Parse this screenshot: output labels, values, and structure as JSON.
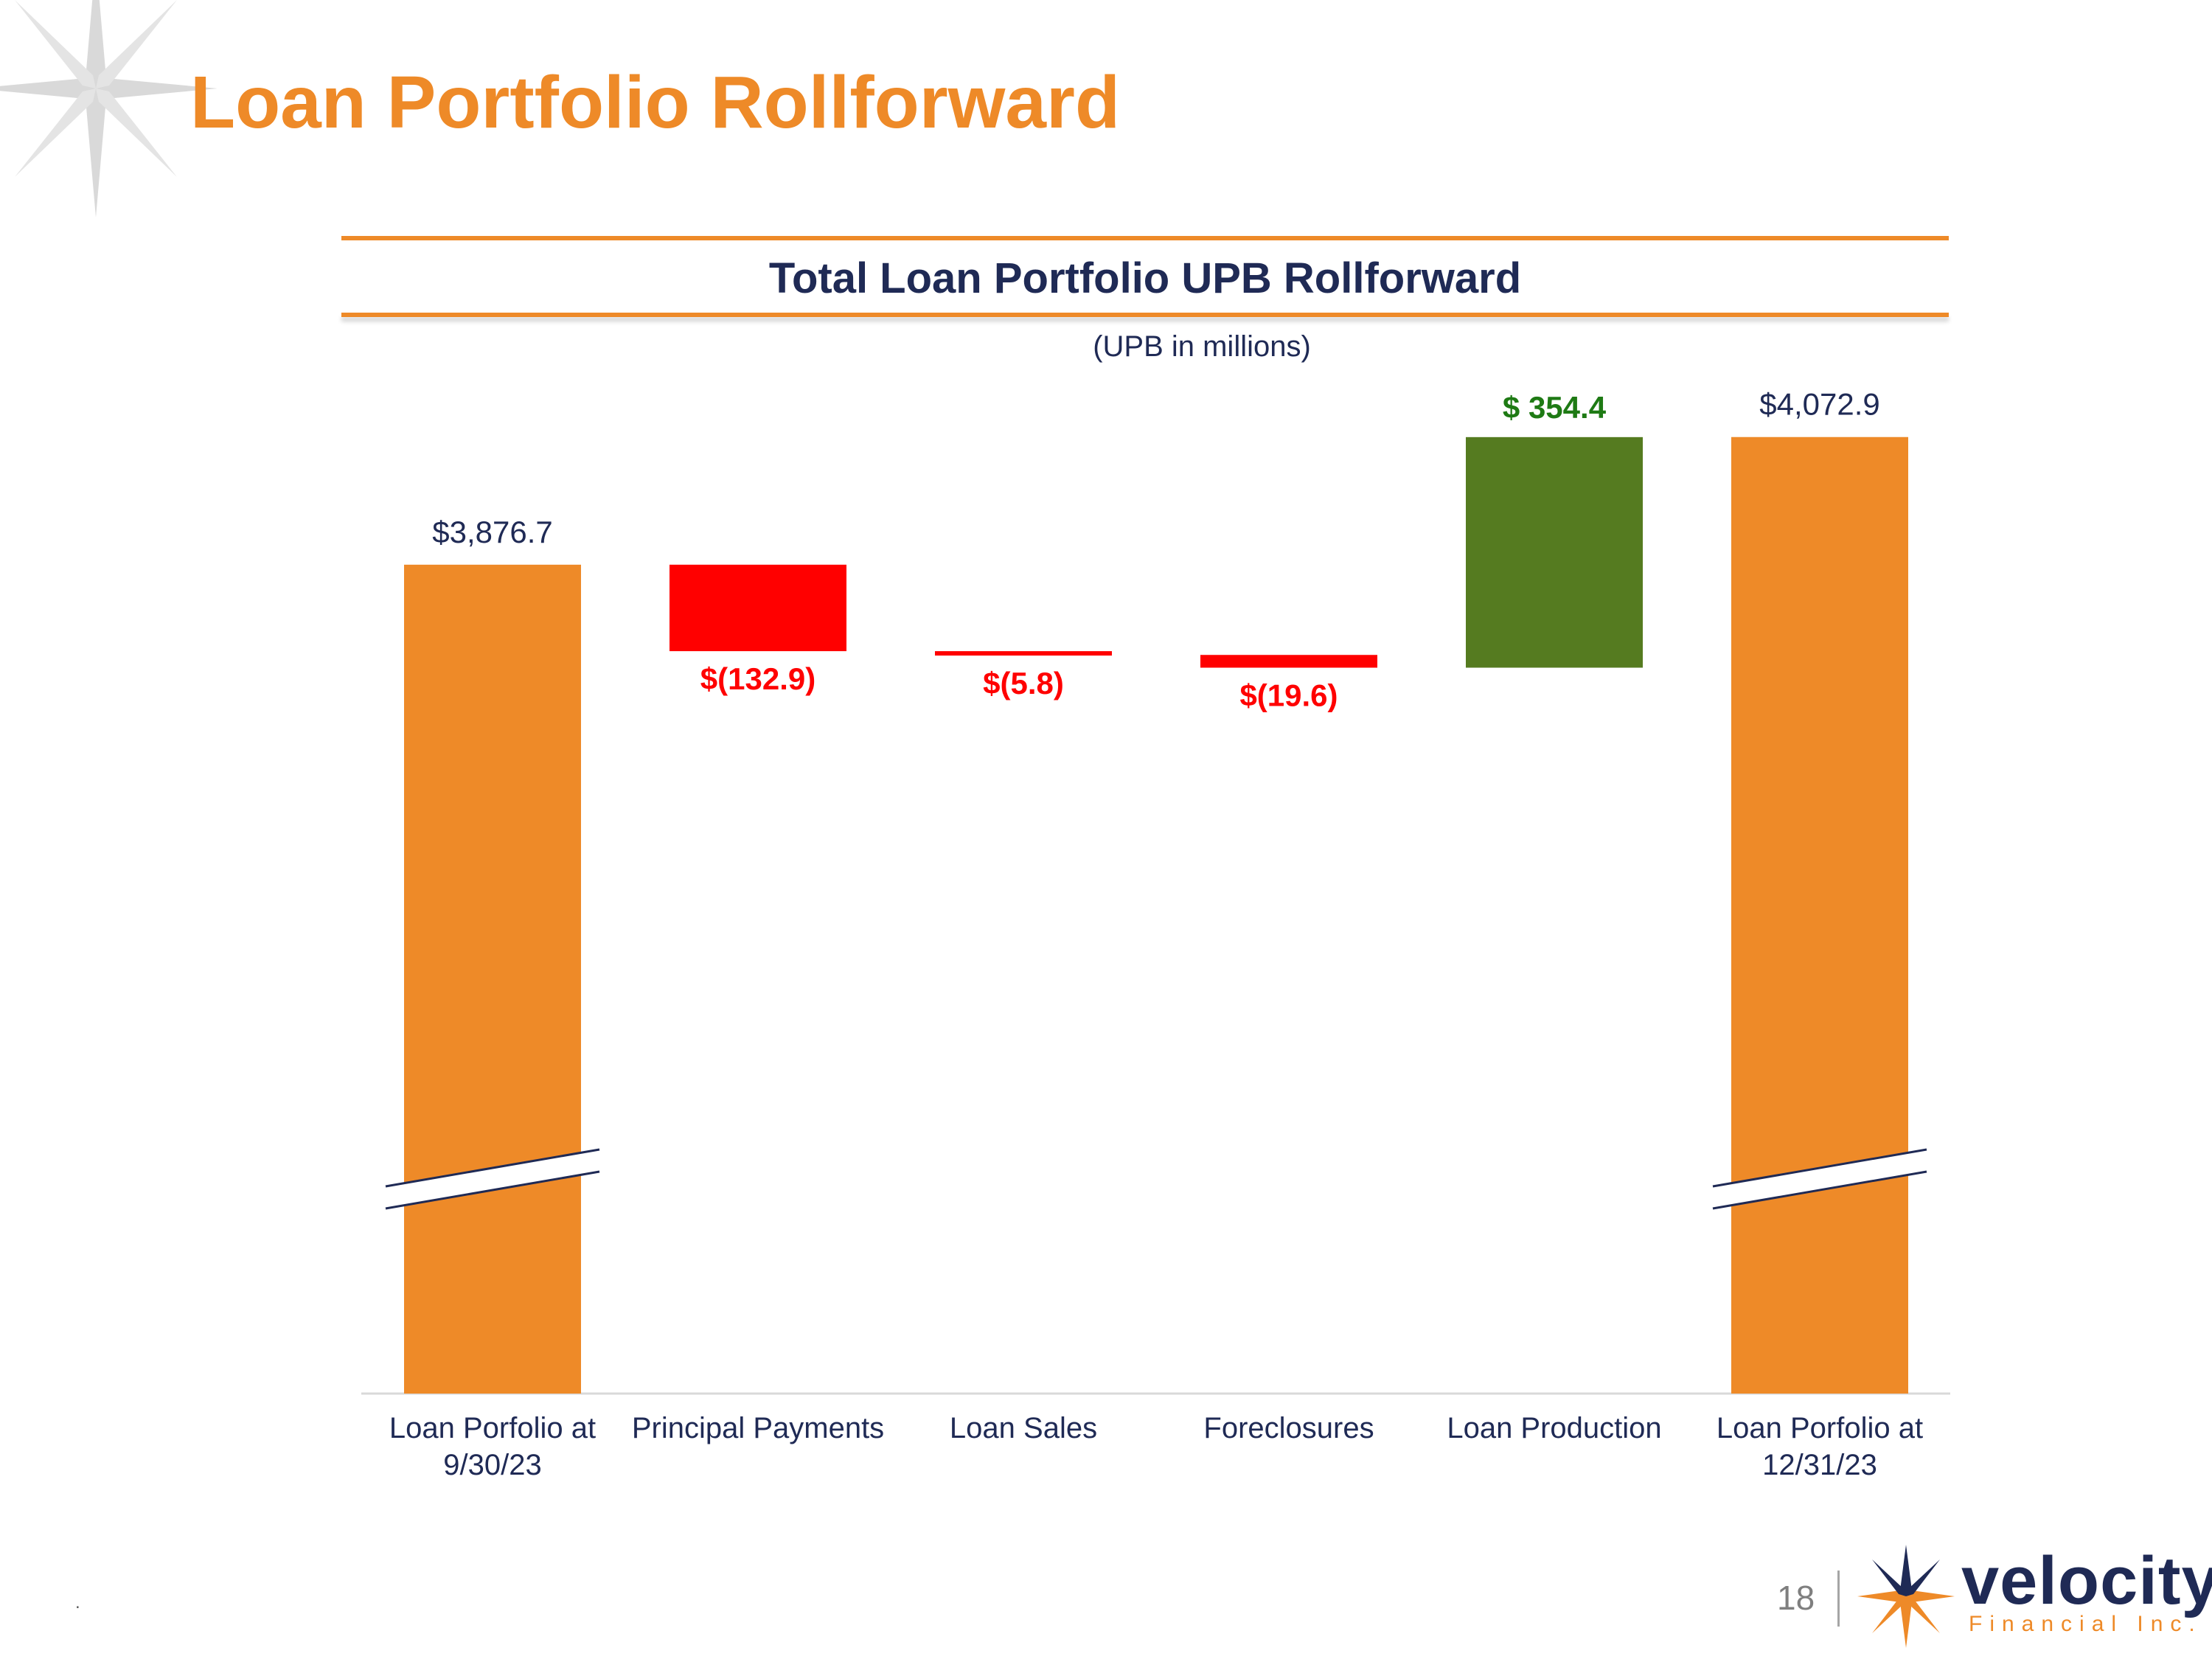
{
  "slide": {
    "title": "Loan Portfolio Rollforward",
    "page_number": "18",
    "footer_mark": "."
  },
  "logo": {
    "wordmark": "velocity",
    "subtitle": "Financial Inc."
  },
  "colors": {
    "accent": "#EE8A28",
    "navy": "#1F2A55",
    "negative": "#FF0000",
    "positive": "#557B20",
    "positive_label": "#1E7A14"
  },
  "chart_data": {
    "type": "bar",
    "subtype": "waterfall",
    "title": "Total Loan Portfolio UPB Rollforward",
    "subtitle": "(UPB in millions)",
    "categories": [
      [
        "Loan Porfolio at",
        "9/30/23"
      ],
      [
        "Principal Payments"
      ],
      [
        "Loan Sales"
      ],
      [
        "Foreclosures"
      ],
      [
        "Loan Production"
      ],
      [
        "Loan Porfolio at",
        "12/31/23"
      ]
    ],
    "values": [
      3876.7,
      -132.9,
      -5.8,
      -19.6,
      354.4,
      4072.9
    ],
    "kinds": [
      "total",
      "delta",
      "delta",
      "delta",
      "delta",
      "total"
    ],
    "labels": [
      "$3,876.7",
      "$(132.9)",
      "$(5.8)",
      "$(19.6)",
      "$ 354.4",
      "$4,072.9"
    ],
    "axis_break": true,
    "ylim": [
      3600,
      4110
    ]
  }
}
